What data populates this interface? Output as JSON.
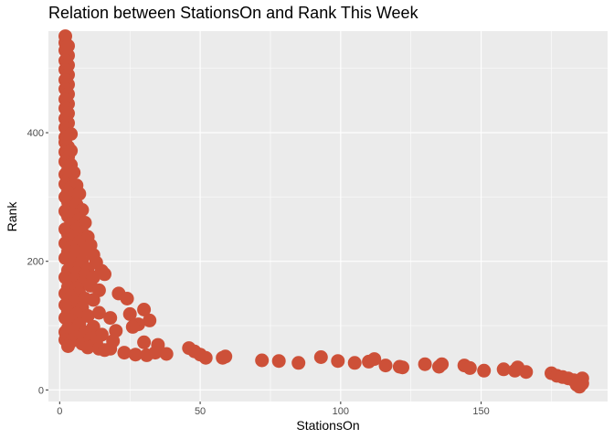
{
  "chart_data": {
    "type": "scatter",
    "title": "Relation between StationsOn and Rank This Week",
    "xlabel": "StationsOn",
    "ylabel": "Rank",
    "xlim": [
      -4,
      195
    ],
    "ylim": [
      -18,
      558
    ],
    "x_ticks": [
      0,
      50,
      100,
      150
    ],
    "y_ticks": [
      0,
      200,
      400
    ],
    "grid": true,
    "point_color": "#cd5038",
    "panel_color": "#ebebeb",
    "grid_color": "#ffffff",
    "points": [
      [
        2,
        550
      ],
      [
        2,
        540
      ],
      [
        3,
        535
      ],
      [
        2,
        528
      ],
      [
        3,
        520
      ],
      [
        2,
        512
      ],
      [
        3,
        505
      ],
      [
        2,
        498
      ],
      [
        3,
        490
      ],
      [
        2,
        482
      ],
      [
        3,
        475
      ],
      [
        2,
        468
      ],
      [
        3,
        460
      ],
      [
        2,
        452
      ],
      [
        3,
        445
      ],
      [
        2,
        438
      ],
      [
        3,
        430
      ],
      [
        2,
        422
      ],
      [
        3,
        415
      ],
      [
        2,
        408
      ],
      [
        3,
        400
      ],
      [
        2,
        393
      ],
      [
        4,
        398
      ],
      [
        2,
        385
      ],
      [
        3,
        378
      ],
      [
        2,
        370
      ],
      [
        4,
        372
      ],
      [
        3,
        362
      ],
      [
        2,
        355
      ],
      [
        4,
        350
      ],
      [
        3,
        342
      ],
      [
        2,
        335
      ],
      [
        5,
        338
      ],
      [
        3,
        328
      ],
      [
        2,
        320
      ],
      [
        4,
        315
      ],
      [
        6,
        318
      ],
      [
        3,
        308
      ],
      [
        2,
        300
      ],
      [
        5,
        302
      ],
      [
        7,
        305
      ],
      [
        3,
        292
      ],
      [
        4,
        285
      ],
      [
        6,
        288
      ],
      [
        2,
        278
      ],
      [
        8,
        280
      ],
      [
        3,
        270
      ],
      [
        5,
        272
      ],
      [
        7,
        265
      ],
      [
        4,
        258
      ],
      [
        9,
        260
      ],
      [
        2,
        250
      ],
      [
        6,
        250
      ],
      [
        3,
        242
      ],
      [
        8,
        245
      ],
      [
        5,
        236
      ],
      [
        10,
        238
      ],
      [
        2,
        228
      ],
      [
        7,
        230
      ],
      [
        4,
        222
      ],
      [
        11,
        225
      ],
      [
        3,
        215
      ],
      [
        6,
        215
      ],
      [
        9,
        218
      ],
      [
        12,
        210
      ],
      [
        2,
        205
      ],
      [
        5,
        205
      ],
      [
        8,
        200
      ],
      [
        4,
        195
      ],
      [
        13,
        198
      ],
      [
        7,
        192
      ],
      [
        3,
        186
      ],
      [
        10,
        188
      ],
      [
        6,
        182
      ],
      [
        15,
        185
      ],
      [
        2,
        175
      ],
      [
        9,
        178
      ],
      [
        5,
        172
      ],
      [
        12,
        175
      ],
      [
        4,
        168
      ],
      [
        8,
        165
      ],
      [
        16,
        180
      ],
      [
        3,
        160
      ],
      [
        6,
        158
      ],
      [
        11,
        162
      ],
      [
        2,
        150
      ],
      [
        7,
        150
      ],
      [
        14,
        155
      ],
      [
        4,
        144
      ],
      [
        9,
        142
      ],
      [
        5,
        136
      ],
      [
        21,
        150
      ],
      [
        2,
        132
      ],
      [
        12,
        140
      ],
      [
        24,
        142
      ],
      [
        8,
        128
      ],
      [
        3,
        122
      ],
      [
        6,
        118
      ],
      [
        30,
        125
      ],
      [
        25,
        118
      ],
      [
        2,
        112
      ],
      [
        10,
        115
      ],
      [
        14,
        120
      ],
      [
        4,
        108
      ],
      [
        18,
        112
      ],
      [
        32,
        108
      ],
      [
        7,
        102
      ],
      [
        28,
        102
      ],
      [
        3,
        96
      ],
      [
        12,
        98
      ],
      [
        26,
        98
      ],
      [
        2,
        90
      ],
      [
        5,
        92
      ],
      [
        9,
        90
      ],
      [
        20,
        92
      ],
      [
        15,
        86
      ],
      [
        6,
        82
      ],
      [
        2,
        78
      ],
      [
        11,
        80
      ],
      [
        4,
        75
      ],
      [
        8,
        72
      ],
      [
        13,
        74
      ],
      [
        19,
        76
      ],
      [
        30,
        74
      ],
      [
        35,
        70
      ],
      [
        3,
        68
      ],
      [
        10,
        66
      ],
      [
        14,
        64
      ],
      [
        16,
        62
      ],
      [
        18,
        64
      ],
      [
        23,
        58
      ],
      [
        27,
        55
      ],
      [
        31,
        54
      ],
      [
        34,
        58
      ],
      [
        38,
        56
      ],
      [
        46,
        65
      ],
      [
        48,
        60
      ],
      [
        50,
        55
      ],
      [
        52,
        50
      ],
      [
        58,
        50
      ],
      [
        59,
        52
      ],
      [
        72,
        46
      ],
      [
        78,
        45
      ],
      [
        85,
        42
      ],
      [
        93,
        51
      ],
      [
        99,
        45
      ],
      [
        105,
        42
      ],
      [
        110,
        44
      ],
      [
        112,
        48
      ],
      [
        116,
        38
      ],
      [
        121,
        36
      ],
      [
        122,
        35
      ],
      [
        130,
        40
      ],
      [
        135,
        36
      ],
      [
        136,
        40
      ],
      [
        144,
        38
      ],
      [
        146,
        34
      ],
      [
        151,
        30
      ],
      [
        158,
        32
      ],
      [
        162,
        30
      ],
      [
        163,
        35
      ],
      [
        166,
        28
      ],
      [
        175,
        26
      ],
      [
        177,
        22
      ],
      [
        179,
        20
      ],
      [
        181,
        18
      ],
      [
        183,
        15
      ],
      [
        185,
        12
      ],
      [
        186,
        10
      ],
      [
        185,
        5
      ],
      [
        186,
        18
      ],
      [
        184,
        8
      ]
    ]
  }
}
